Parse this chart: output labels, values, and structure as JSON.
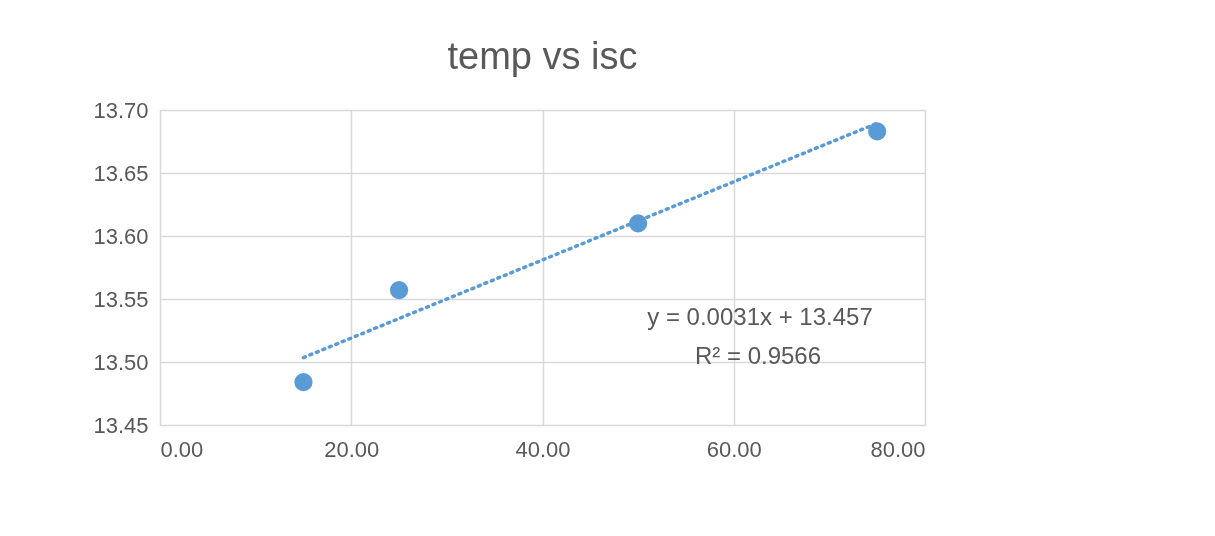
{
  "chart_data": {
    "type": "scatter",
    "title": "temp vs isc",
    "x": [
      15,
      25,
      50,
      75
    ],
    "series": [
      {
        "type": "scatter",
        "color": "#5b9bd5",
        "values": [
          13.484,
          13.557,
          13.61,
          13.683
        ],
        "marker": "circle"
      },
      {
        "type": "line",
        "color": "#5b9bd5",
        "x": [
          15,
          75
        ],
        "values": [
          13.5035,
          13.6895
        ],
        "line_style": "dotted",
        "marker": "none"
      }
    ],
    "annotations": [
      "y = 0.0031x + 13.457",
      "R² = 0.9566"
    ],
    "xlim": [
      0,
      80
    ],
    "ylim": [
      13.45,
      13.7
    ],
    "xticks": [
      {
        "value": 0,
        "label": "0.00"
      },
      {
        "value": 20,
        "label": "20.00"
      },
      {
        "value": 40,
        "label": "40.00"
      },
      {
        "value": 60,
        "label": "60.00"
      },
      {
        "value": 80,
        "label": "80.00"
      }
    ],
    "yticks": [
      {
        "value": 13.45,
        "label": "13.45"
      },
      {
        "value": 13.5,
        "label": "13.50"
      },
      {
        "value": 13.55,
        "label": "13.55"
      },
      {
        "value": 13.6,
        "label": "13.60"
      },
      {
        "value": 13.65,
        "label": "13.65"
      },
      {
        "value": 13.7,
        "label": "13.70"
      }
    ],
    "grid": true
  }
}
